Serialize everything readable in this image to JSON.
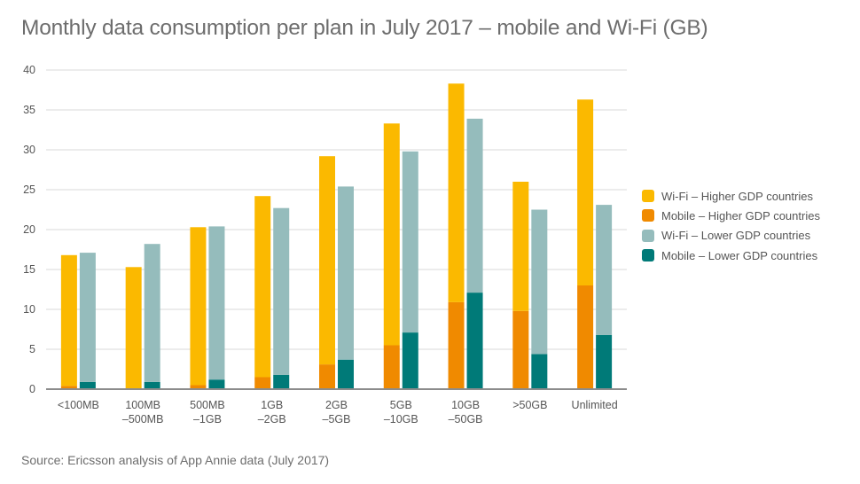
{
  "title": "Monthly data consumption per plan in July 2017 – mobile and Wi-Fi (GB)",
  "source": "Source: Ericsson analysis of App Annie data (July 2017)",
  "colors": {
    "wifi_high": "#fbb900",
    "mobile_high": "#f08a00",
    "wifi_low": "#95bcbc",
    "mobile_low": "#007a78",
    "grid": "#d9d9d9",
    "axis": "#8c8c8c"
  },
  "legend": [
    {
      "label": "Wi-Fi – Higher GDP countries",
      "color_key": "wifi_high"
    },
    {
      "label": "Mobile – Higher GDP countries",
      "color_key": "mobile_high"
    },
    {
      "label": "Wi-Fi – Lower GDP countries",
      "color_key": "wifi_low"
    },
    {
      "label": "Mobile – Lower GDP countries",
      "color_key": "mobile_low"
    }
  ],
  "chart_data": {
    "type": "bar",
    "stacked": true,
    "grouped": true,
    "categories": [
      [
        "<100MB"
      ],
      [
        "100MB",
        "–500MB"
      ],
      [
        "500MB",
        "–1GB"
      ],
      [
        "1GB",
        "–2GB"
      ],
      [
        "2GB",
        "–5GB"
      ],
      [
        "5GB",
        "–10GB"
      ],
      [
        "10GB",
        "–50GB"
      ],
      [
        ">50GB"
      ],
      [
        "Unlimited"
      ]
    ],
    "groups": [
      {
        "stack": "Higher GDP countries",
        "series": [
          {
            "name": "Mobile – Higher GDP countries",
            "color_key": "mobile_high",
            "values": [
              0.4,
              0.1,
              0.5,
              1.5,
              3.1,
              5.5,
              10.9,
              9.8,
              13.0
            ]
          },
          {
            "name": "Wi-Fi – Higher GDP countries",
            "color_key": "wifi_high",
            "values": [
              16.4,
              15.2,
              19.8,
              22.7,
              26.1,
              27.8,
              27.4,
              16.2,
              23.3
            ]
          }
        ]
      },
      {
        "stack": "Lower GDP countries",
        "series": [
          {
            "name": "Mobile – Lower GDP countries",
            "color_key": "mobile_low",
            "values": [
              0.9,
              0.9,
              1.2,
              1.8,
              3.7,
              7.1,
              12.1,
              4.4,
              6.8
            ]
          },
          {
            "name": "Wi-Fi – Lower GDP countries",
            "color_key": "wifi_low",
            "values": [
              16.2,
              17.3,
              19.2,
              20.9,
              21.7,
              22.7,
              21.8,
              18.1,
              16.3
            ]
          }
        ]
      }
    ],
    "y_ticks": [
      0,
      5,
      10,
      15,
      20,
      25,
      30,
      35,
      40
    ],
    "ylim": [
      0,
      40
    ],
    "grid": true,
    "legend_position": "right"
  }
}
